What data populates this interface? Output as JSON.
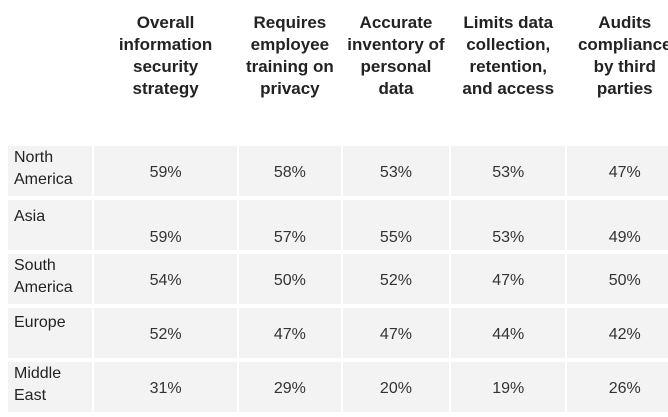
{
  "chart_data": {
    "type": "table",
    "columns": [
      "Overall information security strategy",
      "Requires employee training on privacy",
      "Accurate inventory of personal data",
      "Limits data collection, retention, and access",
      "Audits compliance by third parties"
    ],
    "rows": [
      {
        "label": "North America",
        "values": [
          "59%",
          "58%",
          "53%",
          "53%",
          "47%"
        ]
      },
      {
        "label": "Asia",
        "values": [
          "59%",
          "57%",
          "55%",
          "53%",
          "49%"
        ]
      },
      {
        "label": "South America",
        "values": [
          "54%",
          "50%",
          "52%",
          "47%",
          "50%"
        ]
      },
      {
        "label": "Europe",
        "values": [
          "52%",
          "47%",
          "47%",
          "44%",
          "42%"
        ]
      },
      {
        "label": "Middle East",
        "values": [
          "31%",
          "29%",
          "20%",
          "19%",
          "26%"
        ]
      }
    ]
  }
}
